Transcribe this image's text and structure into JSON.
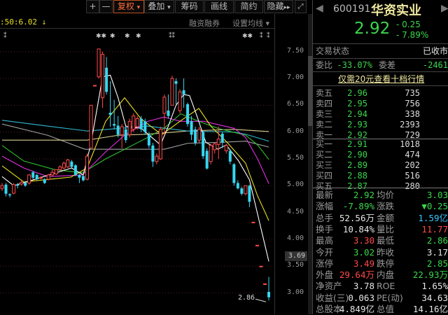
{
  "toolbar": {
    "zoom_in": "+",
    "zoom_out": "—",
    "fuquan": "复权",
    "overlay": "叠加",
    "chips": "筹码",
    "draw": "画线",
    "simple": "简约",
    "hide": "隐藏",
    "fullscreen_icon": "expand-icon",
    "dropdown": "▾",
    "hide_arrows": "▸▸"
  },
  "chart_header": {
    "ma_readout": ":50:6.02",
    "arrow": "↓",
    "margin_trading": "融资融券",
    "set_ma": "设置均线 ▾"
  },
  "stock": {
    "code": "600191",
    "name": "华资实业",
    "price": "2.92",
    "change": "- 0.25",
    "change_pct": "- 7.89%"
  },
  "status": {
    "label": "交易状态",
    "value": "已收市"
  },
  "ratio": {
    "label1": "委比",
    "value1": "-33.07%",
    "label2": "委差",
    "value2": "-2461"
  },
  "promo_link": "仅需20元查看十档行情",
  "asks": [
    {
      "label": "卖五",
      "price": "2.96",
      "vol": "735"
    },
    {
      "label": "卖四",
      "price": "2.95",
      "vol": "756"
    },
    {
      "label": "卖三",
      "price": "2.94",
      "vol": "338"
    },
    {
      "label": "卖二",
      "price": "2.93",
      "vol": "2393"
    },
    {
      "label": "卖一",
      "price": "2.92",
      "vol": "729"
    }
  ],
  "bids": [
    {
      "label": "买一",
      "price": "2.91",
      "vol": "1018"
    },
    {
      "label": "买二",
      "price": "2.90",
      "vol": "474"
    },
    {
      "label": "买三",
      "price": "2.89",
      "vol": "202"
    },
    {
      "label": "买四",
      "price": "2.88",
      "vol": "516"
    },
    {
      "label": "买五",
      "price": "2.87",
      "vol": "280"
    }
  ],
  "stats": [
    {
      "l1": "最新",
      "v1": "2.92",
      "c1": "g",
      "l2": "均价",
      "v2": "3.03",
      "c2": "g"
    },
    {
      "l1": "涨幅",
      "v1": "-7.89%",
      "c1": "g",
      "l2": "涨跌",
      "v2": "▼0.25",
      "c2": "g"
    },
    {
      "l1": "总手",
      "v1": "52.56万",
      "c1": "w",
      "l2": "金额",
      "v2": "1.59亿",
      "c2": "c"
    },
    {
      "l1": "换手",
      "v1": "10.84%",
      "c1": "w",
      "l2": "量比",
      "v2": "11.77",
      "c2": "r"
    },
    {
      "l1": "最高",
      "v1": "3.30",
      "c1": "r",
      "l2": "最低",
      "v2": "2.86",
      "c2": "g"
    },
    {
      "l1": "今开",
      "v1": "3.02",
      "c1": "g",
      "l2": "昨收",
      "v2": "3.17",
      "c2": "w"
    },
    {
      "l1": "涨停",
      "v1": "3.49",
      "c1": "r",
      "l2": "跌停",
      "v2": "2.85",
      "c2": "g"
    },
    {
      "l1": "外盘",
      "v1": "29.64万",
      "c1": "r",
      "l2": "内盘",
      "v2": "22.93万",
      "c2": "g"
    },
    {
      "l1": "净资产",
      "v1": "3.78",
      "c1": "w",
      "l2": "ROE",
      "v2": "1.65%",
      "c2": "w"
    },
    {
      "l1": "收益(三)",
      "v1": "0.063",
      "c1": "w",
      "l2": "PE(动)",
      "v2": "34.63",
      "c2": "w"
    },
    {
      "l1": "总股本",
      "v1": "4.849亿",
      "c1": "w",
      "l2": "总值",
      "v2": "14.16亿",
      "c2": "w"
    }
  ],
  "colors": {
    "up": "#ff4a4a",
    "down": "#36d6f0",
    "ma5": "#ffffff",
    "ma10": "#e8e020",
    "ma20": "#e030e0",
    "ma30": "#30c030",
    "ma60": "#30b8d0",
    "ma120": "#d8d090",
    "ma250": "#a0a0a0"
  },
  "chart_data": {
    "type": "candlestick",
    "ylim": [
      2.72,
      7.94
    ],
    "yticks": [
      "7.50",
      "7.00",
      "6.50",
      "6.00",
      "5.50",
      "5.00",
      "4.50",
      "4.00",
      "3.50",
      "3.00"
    ],
    "cursor_price": "3.69",
    "low_label": "2.86",
    "grid": true,
    "candles": [
      [
        4.95,
        5.05,
        4.9,
        5.0
      ],
      [
        5.02,
        5.05,
        4.8,
        4.85
      ],
      [
        4.84,
        4.86,
        4.78,
        4.82
      ],
      [
        4.86,
        5.05,
        4.84,
        5.02
      ],
      [
        5.02,
        5.05,
        4.95,
        5.0
      ],
      [
        5.03,
        5.1,
        5.0,
        5.06
      ],
      [
        5.06,
        5.08,
        4.98,
        5.0
      ],
      [
        5.05,
        5.22,
        5.02,
        5.2
      ],
      [
        5.25,
        5.28,
        5.12,
        5.15
      ],
      [
        5.2,
        5.22,
        5.1,
        5.12
      ],
      [
        5.15,
        5.18,
        5.12,
        5.15
      ],
      [
        5.12,
        5.14,
        5.03,
        5.05
      ],
      [
        5.12,
        5.22,
        5.1,
        5.2
      ],
      [
        5.2,
        5.3,
        5.18,
        5.25
      ],
      [
        5.22,
        5.3,
        5.2,
        5.3
      ],
      [
        5.3,
        5.38,
        5.28,
        5.35
      ],
      [
        5.33,
        5.45,
        5.3,
        5.42
      ],
      [
        5.35,
        5.5,
        5.33,
        5.48
      ],
      [
        5.45,
        5.48,
        5.33,
        5.35
      ],
      [
        5.38,
        5.4,
        5.18,
        5.2
      ],
      [
        5.2,
        5.22,
        5.05,
        5.15
      ],
      [
        5.18,
        5.2,
        5.08,
        5.1
      ],
      [
        5.12,
        5.6,
        5.1,
        5.55
      ],
      [
        5.7,
        6.5,
        5.7,
        6.5
      ],
      [
        6.87,
        6.87,
        6.87,
        6.87
      ],
      [
        7.03,
        7.55,
        7.0,
        7.55
      ],
      [
        6.64,
        7.5,
        6.45,
        7.45
      ],
      [
        7.2,
        7.4,
        6.7,
        6.75
      ],
      [
        6.36,
        6.95,
        6.1,
        6.32
      ],
      [
        6.15,
        6.6,
        6.05,
        6.12
      ],
      [
        6.12,
        6.3,
        5.9,
        5.95
      ],
      [
        5.95,
        6.15,
        5.7,
        6.1
      ],
      [
        6.05,
        6.1,
        5.8,
        5.85
      ],
      [
        5.95,
        6.25,
        5.9,
        6.2
      ],
      [
        6.05,
        6.35,
        6.0,
        6.3
      ],
      [
        6.1,
        6.3,
        6.05,
        6.25
      ],
      [
        6.25,
        6.3,
        6.0,
        6.05
      ],
      [
        6.2,
        6.25,
        5.95,
        6.0
      ],
      [
        5.95,
        6.0,
        5.7,
        5.75
      ],
      [
        5.75,
        5.8,
        5.35,
        5.45
      ],
      [
        5.45,
        5.6,
        5.4,
        5.55
      ],
      [
        5.5,
        6.1,
        5.48,
        6.05
      ],
      [
        6.35,
        6.7,
        5.95,
        6.65
      ],
      [
        6.4,
        6.7,
        6.25,
        6.3
      ],
      [
        6.5,
        7.05,
        6.5,
        7.0
      ],
      [
        6.95,
        7.0,
        6.5,
        6.9
      ],
      [
        6.4,
        6.8,
        6.35,
        6.75
      ],
      [
        6.78,
        7.0,
        6.45,
        6.7
      ],
      [
        6.52,
        6.55,
        6.1,
        6.15
      ],
      [
        6.2,
        6.3,
        5.85,
        5.95
      ],
      [
        6.05,
        6.1,
        5.75,
        5.8
      ],
      [
        5.85,
        6.1,
        5.8,
        6.05
      ],
      [
        6.0,
        6.02,
        5.5,
        5.55
      ],
      [
        5.65,
        5.7,
        5.3,
        5.32
      ],
      [
        5.45,
        5.78,
        5.4,
        5.75
      ],
      [
        5.67,
        5.8,
        5.6,
        5.78
      ],
      [
        5.77,
        6.1,
        5.5,
        5.87
      ],
      [
        5.97,
        6.0,
        5.7,
        5.8
      ],
      [
        5.65,
        5.78,
        5.6,
        5.75
      ],
      [
        5.65,
        5.68,
        5.4,
        5.45
      ],
      [
        5.4,
        5.42,
        5.0,
        5.05
      ],
      [
        5.05,
        5.1,
        4.93,
        4.95
      ],
      [
        4.95,
        4.98,
        4.82,
        4.85
      ],
      [
        4.85,
        5.0,
        4.82,
        5.0
      ],
      [
        5.0,
        5.02,
        4.6,
        4.7
      ],
      [
        4.32,
        4.32,
        4.32,
        4.32
      ],
      [
        3.89,
        3.89,
        3.89,
        3.89
      ],
      [
        3.5,
        3.5,
        3.5,
        3.5
      ],
      [
        3.17,
        3.17,
        3.17,
        3.17
      ],
      [
        3.02,
        3.3,
        2.86,
        2.92
      ]
    ],
    "ma_lines": [
      {
        "key": "ma250",
        "points": [
          [
            0,
            6.15
          ],
          [
            11.8,
            5.94
          ],
          [
            21.4,
            5.68
          ],
          [
            42,
            5.68
          ],
          [
            48,
            5.79
          ],
          [
            57,
            5.81
          ],
          [
            63,
            5.83
          ],
          [
            69,
            5.72
          ]
        ]
      },
      {
        "key": "ma120",
        "points": [
          [
            0,
            5.85
          ],
          [
            22,
            5.85
          ],
          [
            30,
            5.94
          ],
          [
            37.7,
            5.96
          ],
          [
            48,
            6.02
          ],
          [
            60,
            6.05
          ],
          [
            69,
            6.01
          ]
        ]
      },
      {
        "key": "ma60",
        "points": [
          [
            0,
            6.22
          ],
          [
            11.8,
            6.11
          ],
          [
            22,
            6.02
          ],
          [
            37.7,
            6.11
          ],
          [
            48,
            6.02
          ],
          [
            60,
            6.0
          ],
          [
            63,
            5.96
          ],
          [
            69,
            5.83
          ]
        ]
      },
      {
        "key": "ma30",
        "points": [
          [
            0,
            5.75
          ],
          [
            5.6,
            5.46
          ],
          [
            13.6,
            5.3
          ],
          [
            20.8,
            5.24
          ],
          [
            26.8,
            5.5
          ],
          [
            37.7,
            5.9
          ],
          [
            41.9,
            6.07
          ],
          [
            46.2,
            6.34
          ],
          [
            50.9,
            6.2
          ],
          [
            55.8,
            6.07
          ],
          [
            63,
            5.94
          ],
          [
            66.1,
            5.76
          ],
          [
            69,
            5.49
          ]
        ]
      },
      {
        "key": "ma20",
        "points": [
          [
            0,
            5.55
          ],
          [
            5.6,
            5.33
          ],
          [
            11.8,
            5.17
          ],
          [
            20.8,
            5.2
          ],
          [
            26.8,
            5.63
          ],
          [
            31.7,
            5.94
          ],
          [
            37.7,
            6.2
          ],
          [
            41.9,
            6.28
          ],
          [
            46.2,
            6.2
          ],
          [
            52.2,
            6.2
          ],
          [
            60,
            6.07
          ],
          [
            63,
            5.9
          ],
          [
            66.1,
            5.5
          ],
          [
            69,
            5.04
          ]
        ]
      },
      {
        "key": "ma10",
        "points": [
          [
            0,
            5.37
          ],
          [
            5.6,
            5.07
          ],
          [
            17.8,
            5.16
          ],
          [
            22,
            5.33
          ],
          [
            26.8,
            6.2
          ],
          [
            31.7,
            6.64
          ],
          [
            35.9,
            6.25
          ],
          [
            41.3,
            5.95
          ],
          [
            46,
            6.2
          ],
          [
            50.9,
            6.44
          ],
          [
            54,
            6.11
          ],
          [
            58.2,
            5.81
          ],
          [
            63,
            5.42
          ],
          [
            66.1,
            4.81
          ],
          [
            69,
            4.35
          ]
        ]
      },
      {
        "key": "ma5",
        "points": [
          [
            0,
            5.17
          ],
          [
            3,
            5.0
          ],
          [
            9,
            5.13
          ],
          [
            18,
            5.33
          ],
          [
            21,
            5.2
          ],
          [
            23,
            5.79
          ],
          [
            26,
            7.03
          ],
          [
            28,
            7.06
          ],
          [
            30,
            6.64
          ],
          [
            32,
            6.11
          ],
          [
            36,
            6.07
          ],
          [
            41,
            5.76
          ],
          [
            43,
            6.11
          ],
          [
            45,
            6.5
          ],
          [
            47,
            6.7
          ],
          [
            48.5,
            6.68
          ],
          [
            50.5,
            6.28
          ],
          [
            52.7,
            5.81
          ],
          [
            55.8,
            5.68
          ],
          [
            58,
            5.76
          ],
          [
            61.2,
            5.46
          ],
          [
            64,
            5.11
          ],
          [
            66,
            4.5
          ],
          [
            69,
            3.59
          ]
        ]
      }
    ]
  }
}
